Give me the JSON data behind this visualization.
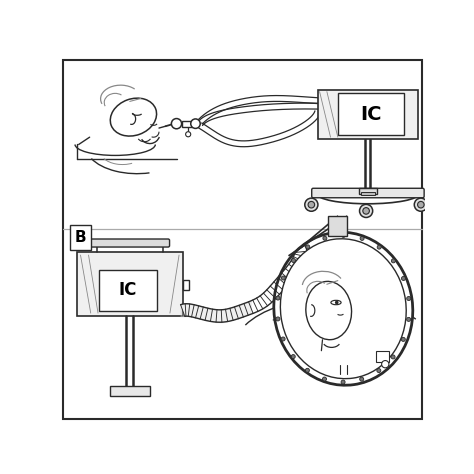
{
  "fig_width": 4.74,
  "fig_height": 4.74,
  "dpi": 100,
  "lc": "#2a2a2a",
  "lg": "#888888",
  "white": "#ffffff",
  "label_B": "B",
  "label_IC": "IC",
  "label_IC2": "IC"
}
